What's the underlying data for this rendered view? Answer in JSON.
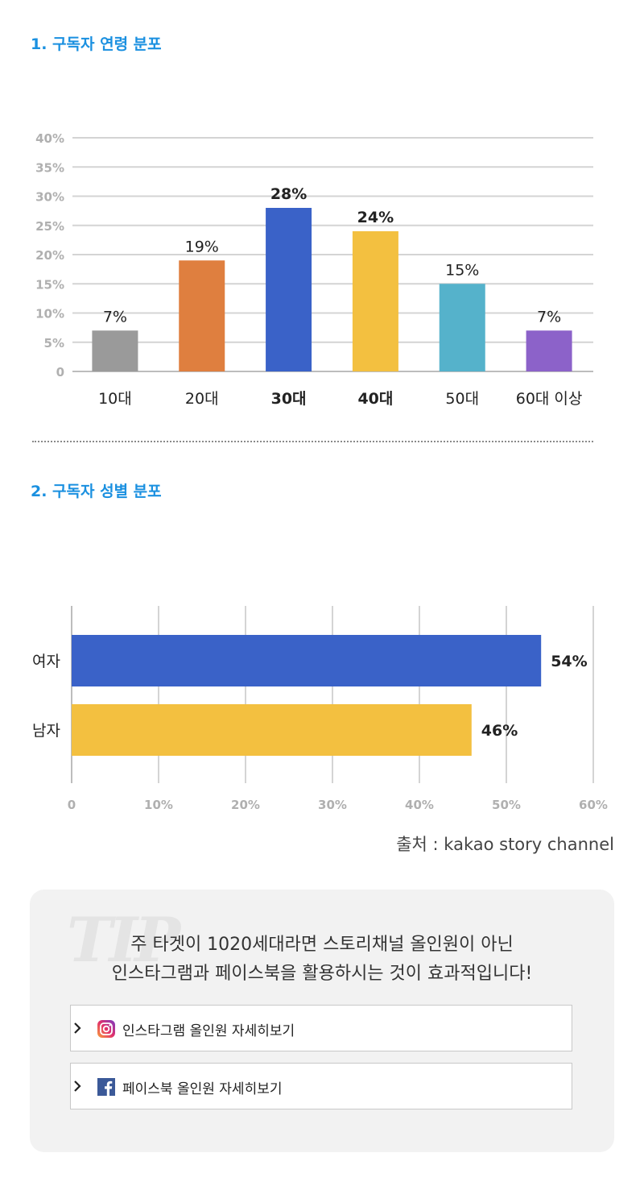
{
  "section1": {
    "title": "1. 구독자 연령 분포"
  },
  "section2": {
    "title": "2. 구독자 성별 분포"
  },
  "chart_data": [
    {
      "type": "bar",
      "orientation": "vertical",
      "categories": [
        "10대",
        "20대",
        "30대",
        "40대",
        "50대",
        "60대 이상"
      ],
      "values": [
        7,
        19,
        28,
        24,
        15,
        7
      ],
      "data_labels": [
        "7%",
        "19%",
        "28%",
        "24%",
        "15%",
        "7%"
      ],
      "highlight": [
        false,
        false,
        true,
        true,
        false,
        false
      ],
      "colors": [
        "#9a9a9a",
        "#df7f3f",
        "#3a62c8",
        "#f3c040",
        "#55b2cb",
        "#8c62c9"
      ],
      "ylim": [
        0,
        40
      ],
      "yticks": [
        0,
        5,
        10,
        15,
        20,
        25,
        30,
        35,
        40
      ],
      "ytick_labels": [
        "0",
        "5%",
        "10%",
        "15%",
        "20%",
        "25%",
        "30%",
        "35%",
        "40%"
      ],
      "grid": true
    },
    {
      "type": "bar",
      "orientation": "horizontal",
      "categories": [
        "여자",
        "남자"
      ],
      "values": [
        54,
        46
      ],
      "data_labels": [
        "54%",
        "46%"
      ],
      "colors": [
        "#3a62c8",
        "#f3c040"
      ],
      "xlim": [
        0,
        60
      ],
      "xticks": [
        0,
        10,
        20,
        30,
        40,
        50,
        60
      ],
      "xtick_labels": [
        "0",
        "10%",
        "20%",
        "30%",
        "40%",
        "50%",
        "60%"
      ],
      "grid": true
    }
  ],
  "source": "출처 : kakao story channel",
  "tip": {
    "watermark": "TIP",
    "line1": "주 타겟이 1020세대라면 스토리채널 올인원이 아닌",
    "line2": "인스타그램과 페이스북을 활용하시는 것이 효과적입니다!",
    "buttons": [
      {
        "label": "인스타그램 올인원 자세히보기",
        "icon": "instagram-icon"
      },
      {
        "label": "페이스북 올인원 자세히보기",
        "icon": "facebook-icon"
      }
    ]
  }
}
